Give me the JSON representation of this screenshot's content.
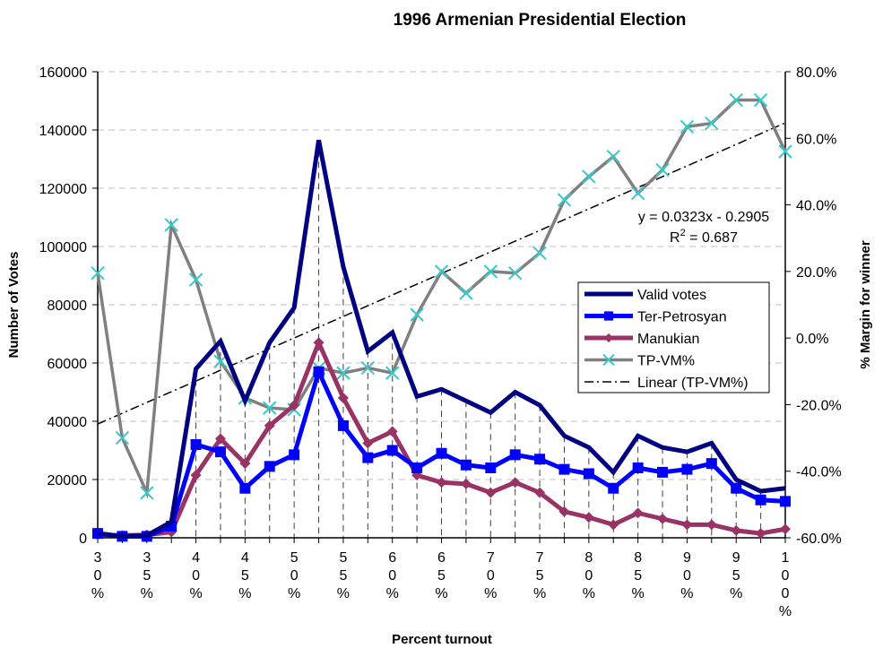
{
  "chart_data": {
    "type": "line",
    "title": "1996 Armenian Presidential Election",
    "xlabel": "Percent turnout",
    "ylabel": "Number of Votes",
    "y2label": "% Margin for winner",
    "ylim": [
      0,
      160000
    ],
    "y2lim": [
      -60,
      80
    ],
    "yticks": [
      "0",
      "20000",
      "40000",
      "60000",
      "80000",
      "100000",
      "120000",
      "140000",
      "160000"
    ],
    "y2ticks": [
      "-60.0%",
      "-40.0%",
      "-20.0%",
      "0.0%",
      "20.0%",
      "40.0%",
      "60.0%",
      "80.0%"
    ],
    "grid": true,
    "legend_position": "center-right",
    "x": [
      30,
      32.5,
      35,
      37.5,
      40,
      42.5,
      45,
      47.5,
      50,
      52.5,
      55,
      57.5,
      60,
      62.5,
      65,
      67.5,
      70,
      72.5,
      75,
      77.5,
      80,
      82.5,
      85,
      87.5,
      90,
      92.5,
      95,
      97.5,
      100
    ],
    "xtick_labels": [
      {
        "index": 0,
        "chars": [
          "3",
          "0",
          "%"
        ]
      },
      {
        "index": 2,
        "chars": [
          "3",
          "5",
          "%"
        ]
      },
      {
        "index": 4,
        "chars": [
          "4",
          "0",
          "%"
        ]
      },
      {
        "index": 6,
        "chars": [
          "4",
          "5",
          "%"
        ]
      },
      {
        "index": 8,
        "chars": [
          "5",
          "0",
          "%"
        ]
      },
      {
        "index": 10,
        "chars": [
          "5",
          "5",
          "%"
        ]
      },
      {
        "index": 12,
        "chars": [
          "6",
          "0",
          "%"
        ]
      },
      {
        "index": 14,
        "chars": [
          "6",
          "5",
          "%"
        ]
      },
      {
        "index": 16,
        "chars": [
          "7",
          "0",
          "%"
        ]
      },
      {
        "index": 18,
        "chars": [
          "7",
          "5",
          "%"
        ]
      },
      {
        "index": 20,
        "chars": [
          "8",
          "0",
          "%"
        ]
      },
      {
        "index": 22,
        "chars": [
          "8",
          "5",
          "%"
        ]
      },
      {
        "index": 24,
        "chars": [
          "9",
          "0",
          "%"
        ]
      },
      {
        "index": 26,
        "chars": [
          "9",
          "5",
          "%"
        ]
      },
      {
        "index": 28,
        "chars": [
          "1",
          "0",
          "0",
          "%"
        ]
      }
    ],
    "series": [
      {
        "name": "Valid votes",
        "axis": "left",
        "color": "#000080",
        "marker": "none",
        "values": [
          1500,
          500,
          800,
          5500,
          58000,
          67500,
          47000,
          67000,
          79000,
          136500,
          93000,
          64000,
          70500,
          48500,
          51000,
          47000,
          43000,
          50000,
          45500,
          35000,
          31000,
          22500,
          35000,
          31000,
          29500,
          32500,
          20000,
          16000,
          17000
        ]
      },
      {
        "name": "Ter-Petrosyan",
        "axis": "left",
        "color": "#0000ff",
        "marker": "square",
        "values": [
          1500,
          500,
          500,
          4000,
          32000,
          29500,
          17000,
          24500,
          28500,
          57000,
          38500,
          27500,
          30000,
          24000,
          29000,
          25000,
          24000,
          28500,
          27000,
          23500,
          22000,
          17000,
          24000,
          22500,
          23500,
          25500,
          17000,
          13000,
          12500
        ]
      },
      {
        "name": "Manukian",
        "axis": "left",
        "color": "#993366",
        "marker": "diamond",
        "values": [
          1000,
          800,
          1000,
          2000,
          21500,
          34000,
          25500,
          38500,
          45500,
          67000,
          48000,
          32500,
          36500,
          21500,
          19000,
          18500,
          15500,
          19000,
          15500,
          9000,
          7000,
          4500,
          8500,
          6500,
          4500,
          4500,
          2500,
          1500,
          3000
        ]
      },
      {
        "name": "TP-VM%",
        "axis": "right",
        "color": "#808080",
        "marker_color": "#33cccc",
        "marker": "x",
        "values": [
          19.5,
          -30,
          -46.5,
          34,
          17.5,
          -7,
          -18,
          -21,
          -21.5,
          -9,
          -10.5,
          -9,
          -10.5,
          7,
          20,
          13.5,
          20,
          19.5,
          25.5,
          41.5,
          48.5,
          54.5,
          43.5,
          50.5,
          63.5,
          64.5,
          71.5,
          71.5,
          56
        ]
      }
    ],
    "trendline": {
      "name": "Linear (TP-VM%)",
      "axis": "right",
      "color": "#000000",
      "slope": 0.0323,
      "intercept": -0.2905,
      "equation_label": "y = 0.0323x - 0.2905",
      "r2_label_prefix": "R",
      "r2_label_sup": "2",
      "r2_label_suffix": " = 0.687"
    }
  }
}
